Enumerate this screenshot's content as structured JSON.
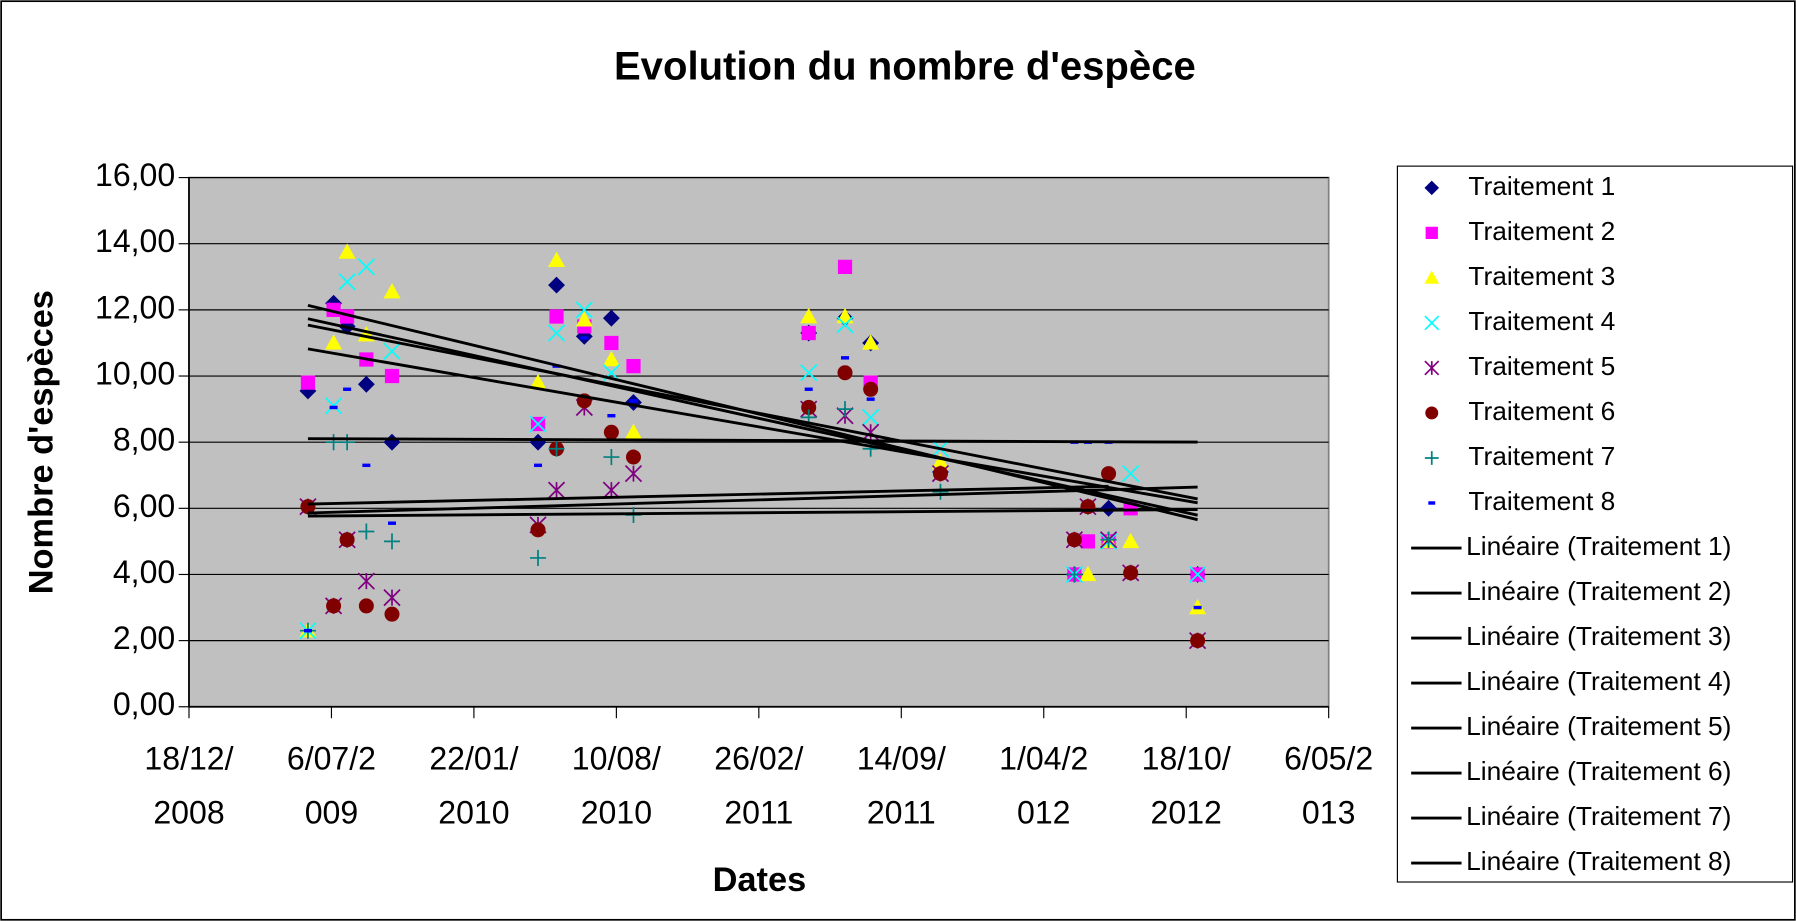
{
  "chart_data": {
    "type": "scatter",
    "title": "Evolution du nombre d'espèce",
    "x_label": "Dates",
    "y_label": "Nombre d'espèces",
    "x": [
      "2009-06-03",
      "2009-07-09",
      "2009-07-28",
      "2009-08-24",
      "2009-09-29",
      "2010-04-22",
      "2010-05-18",
      "2010-06-26",
      "2010-08-03",
      "2010-09-03",
      "2011-05-07",
      "2011-06-27",
      "2011-08-02",
      "2011-11-08",
      "2012-05-14",
      "2012-06-02",
      "2012-07-01",
      "2012-08-01",
      "2012-11-03"
    ],
    "xlim": [
      "2008-12-18",
      "2013-05-06"
    ],
    "xticks": [
      {
        "value": "2008-12-18",
        "label": "18/12/2008"
      },
      {
        "value": "2009-07-06",
        "label": "6/07/2009"
      },
      {
        "value": "2010-01-22",
        "label": "22/01/2010"
      },
      {
        "value": "2010-08-10",
        "label": "10/08/2010"
      },
      {
        "value": "2011-02-26",
        "label": "26/02/2011"
      },
      {
        "value": "2011-09-14",
        "label": "14/09/2011"
      },
      {
        "value": "2012-04-01",
        "label": "1/04/2012"
      },
      {
        "value": "2012-10-18",
        "label": "18/10/2012"
      },
      {
        "value": "2013-05-06",
        "label": "6/05/2013"
      }
    ],
    "ylim": [
      0,
      16
    ],
    "yticks": [
      {
        "value": 0,
        "label": "0,00"
      },
      {
        "value": 2,
        "label": "2,00"
      },
      {
        "value": 4,
        "label": "4,00"
      },
      {
        "value": 6,
        "label": "6,00"
      },
      {
        "value": 8,
        "label": "8,00"
      },
      {
        "value": 10,
        "label": "10,00"
      },
      {
        "value": 12,
        "label": "12,00"
      },
      {
        "value": 14,
        "label": "14,00"
      },
      {
        "value": 16,
        "label": "16,00"
      }
    ],
    "grid": true,
    "trendline": "linear",
    "trendline_color": "#000000",
    "legend": "right",
    "series": [
      {
        "name": "Traitement 1",
        "trendline_name": "Linéaire (Traitement 1)",
        "color": "#000080",
        "marker": "diamond",
        "values": [
          9.55,
          12.2,
          11.5,
          9.75,
          8,
          8,
          12.75,
          11.2,
          11.75,
          9.2,
          11.3,
          11.75,
          11,
          7.1,
          4,
          null,
          6,
          null,
          4
        ]
      },
      {
        "name": "Traitement 2",
        "trendline_name": "Linéaire (Traitement 2)",
        "color": "#ff00ff",
        "marker": "square",
        "values": [
          9.8,
          12,
          11.8,
          10.5,
          10,
          8.55,
          11.8,
          11.5,
          11,
          10.3,
          11.3,
          13.3,
          9.8,
          null,
          4,
          5,
          5,
          6,
          4
        ]
      },
      {
        "name": "Traitement 3",
        "trendline_name": "Linéaire (Traitement 3)",
        "color": "#ffff00",
        "marker": "triangle",
        "values": [
          2.3,
          11,
          13.75,
          11.25,
          12.55,
          9.8,
          13.5,
          11.7,
          10.5,
          8.3,
          11.8,
          11.8,
          11,
          7.4,
          null,
          4,
          5,
          5,
          3
        ]
      },
      {
        "name": "Traitement 4",
        "trendline_name": "Linéaire (Traitement 4)",
        "color": "#00ffff",
        "marker": "x",
        "values": [
          2.3,
          9.1,
          12.85,
          13.3,
          10.75,
          8.55,
          11.3,
          12,
          10.1,
          null,
          10.1,
          11.55,
          8.75,
          7.8,
          4,
          null,
          5,
          7.05,
          4
        ]
      },
      {
        "name": "Traitement 5",
        "trendline_name": "Linéaire (Traitement 5)",
        "color": "#800080",
        "marker": "star",
        "values": [
          6.05,
          3.05,
          5.05,
          3.8,
          3.3,
          5.5,
          6.55,
          9.05,
          6.55,
          7.05,
          9,
          8.8,
          8.3,
          7.05,
          5.05,
          6.05,
          5.05,
          4.05,
          2
        ]
      },
      {
        "name": "Traitement 6",
        "trendline_name": "Linéaire (Traitement 6)",
        "color": "#800000",
        "marker": "circle",
        "values": [
          6.05,
          3.05,
          5.05,
          3.05,
          2.8,
          5.35,
          7.8,
          9.25,
          8.3,
          7.55,
          9.05,
          10.1,
          9.6,
          7.05,
          5.05,
          6.05,
          7.05,
          4.05,
          2
        ]
      },
      {
        "name": "Traitement 7",
        "trendline_name": "Linéaire (Traitement 7)",
        "color": "#008080",
        "marker": "plus",
        "values": [
          2.3,
          8,
          8,
          5.3,
          5,
          4.5,
          7.8,
          null,
          7.55,
          5.8,
          8.75,
          9,
          7.8,
          6.5,
          4,
          null,
          5.05,
          null,
          null
        ]
      },
      {
        "name": "Traitement 8",
        "trendline_name": "Linéaire (Traitement 8)",
        "color": "#0000ff",
        "marker": "dash",
        "values": [
          2.3,
          9.05,
          9.6,
          7.3,
          5.55,
          7.3,
          10.3,
          11.15,
          8.8,
          9.25,
          9.6,
          10.55,
          9.3,
          null,
          8,
          8,
          8,
          null,
          3
        ]
      }
    ]
  }
}
